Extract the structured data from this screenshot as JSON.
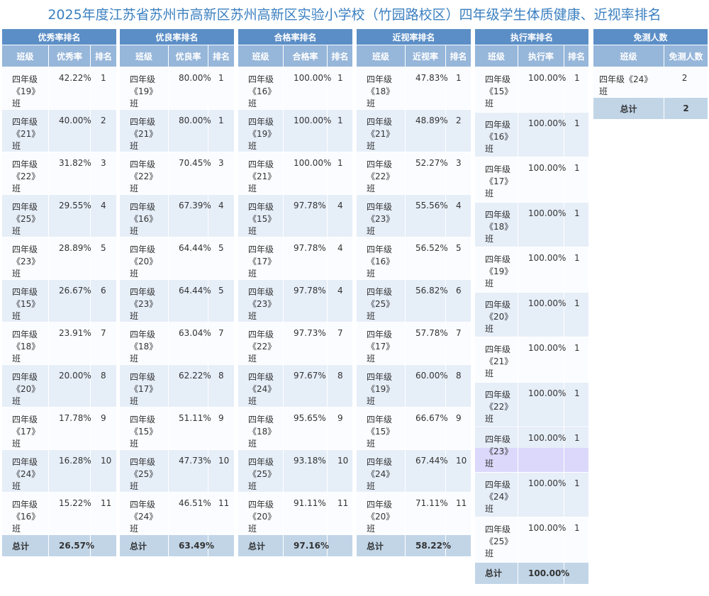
{
  "title": "2025年度江苏省苏州市高新区苏州高新区实验小学校（竹园路校区）四年级学生体质健康、近视率排名",
  "tables": [
    {
      "title": "优秀率排名",
      "headers": [
        "班级",
        "优秀率",
        "排名"
      ],
      "rows": [
        [
          "四年级《19》班",
          "42.22%",
          "1"
        ],
        [
          "四年级《21》班",
          "40.00%",
          "2"
        ],
        [
          "四年级《22》班",
          "31.82%",
          "3"
        ],
        [
          "四年级《25》班",
          "29.55%",
          "4"
        ],
        [
          "四年级《23》班",
          "28.89%",
          "5"
        ],
        [
          "四年级《15》班",
          "26.67%",
          "6"
        ],
        [
          "四年级《18》班",
          "23.91%",
          "7"
        ],
        [
          "四年级《20》班",
          "20.00%",
          "8"
        ],
        [
          "四年级《17》班",
          "17.78%",
          "9"
        ],
        [
          "四年级《24》班",
          "16.28%",
          "10"
        ],
        [
          "四年级《16》班",
          "15.22%",
          "11"
        ]
      ],
      "total": [
        "总计",
        "26.57%"
      ]
    },
    {
      "title": "优良率排名",
      "headers": [
        "班级",
        "优良率",
        "排名"
      ],
      "rows": [
        [
          "四年级《19》班",
          "80.00%",
          "1"
        ],
        [
          "四年级《21》班",
          "80.00%",
          "1"
        ],
        [
          "四年级《22》班",
          "70.45%",
          "3"
        ],
        [
          "四年级《16》班",
          "67.39%",
          "4"
        ],
        [
          "四年级《20》班",
          "64.44%",
          "5"
        ],
        [
          "四年级《23》班",
          "64.44%",
          "5"
        ],
        [
          "四年级《18》班",
          "63.04%",
          "7"
        ],
        [
          "四年级《17》班",
          "62.22%",
          "8"
        ],
        [
          "四年级《15》班",
          "51.11%",
          "9"
        ],
        [
          "四年级《25》班",
          "47.73%",
          "10"
        ],
        [
          "四年级《24》班",
          "46.51%",
          "11"
        ]
      ],
      "total": [
        "总计",
        "63.49%"
      ]
    },
    {
      "title": "合格率排名",
      "headers": [
        "班级",
        "合格率",
        "排名"
      ],
      "rows": [
        [
          "四年级《16》班",
          "100.00%",
          "1"
        ],
        [
          "四年级《19》班",
          "100.00%",
          "1"
        ],
        [
          "四年级《21》班",
          "100.00%",
          "1"
        ],
        [
          "四年级《15》班",
          "97.78%",
          "4"
        ],
        [
          "四年级《17》班",
          "97.78%",
          "4"
        ],
        [
          "四年级《23》班",
          "97.78%",
          "4"
        ],
        [
          "四年级《22》班",
          "97.73%",
          "7"
        ],
        [
          "四年级《24》班",
          "97.67%",
          "8"
        ],
        [
          "四年级《18》班",
          "95.65%",
          "9"
        ],
        [
          "四年级《25》班",
          "93.18%",
          "10"
        ],
        [
          "四年级《20》班",
          "91.11%",
          "11"
        ]
      ],
      "total": [
        "总计",
        "97.16%"
      ]
    },
    {
      "title": "近视率排名",
      "headers": [
        "班级",
        "近视率",
        "排名"
      ],
      "rows": [
        [
          "四年级《18》班",
          "47.83%",
          "1"
        ],
        [
          "四年级《21》班",
          "48.89%",
          "2"
        ],
        [
          "四年级《22》班",
          "52.27%",
          "3"
        ],
        [
          "四年级《23》班",
          "55.56%",
          "4"
        ],
        [
          "四年级《16》班",
          "56.52%",
          "5"
        ],
        [
          "四年级《25》班",
          "56.82%",
          "6"
        ],
        [
          "四年级《17》班",
          "57.78%",
          "7"
        ],
        [
          "四年级《19》班",
          "60.00%",
          "8"
        ],
        [
          "四年级《15》班",
          "66.67%",
          "9"
        ],
        [
          "四年级《24》班",
          "67.44%",
          "10"
        ],
        [
          "四年级《20》班",
          "71.11%",
          "11"
        ]
      ],
      "total": [
        "总计",
        "58.22%"
      ]
    },
    {
      "title": "执行率排名",
      "headers": [
        "班级",
        "执行率",
        "排名"
      ],
      "rows": [
        [
          "四年级《15》班",
          "100.00%",
          "1"
        ],
        [
          "四年级《16》班",
          "100.00%",
          "1"
        ],
        [
          "四年级《17》班",
          "100.00%",
          "1"
        ],
        [
          "四年级《18》班",
          "100.00%",
          "1"
        ],
        [
          "四年级《19》班",
          "100.00%",
          "1"
        ],
        [
          "四年级《20》班",
          "100.00%",
          "1"
        ],
        [
          "四年级《21》班",
          "100.00%",
          "1"
        ],
        [
          "四年级《22》班",
          "100.00%",
          "1"
        ],
        [
          "四年级《23》班",
          "100.00%",
          "1"
        ],
        [
          "四年级《24》班",
          "100.00%",
          "1"
        ],
        [
          "四年级《25》班",
          "100.00%",
          "1"
        ]
      ],
      "total": [
        "总计",
        "100.00%"
      ]
    },
    {
      "title": "免测人数",
      "headers": [
        "班级",
        "免测人数"
      ],
      "rows": [
        [
          "四年级《24》班",
          "2"
        ]
      ],
      "total": [
        "总计",
        "2"
      ]
    }
  ]
}
